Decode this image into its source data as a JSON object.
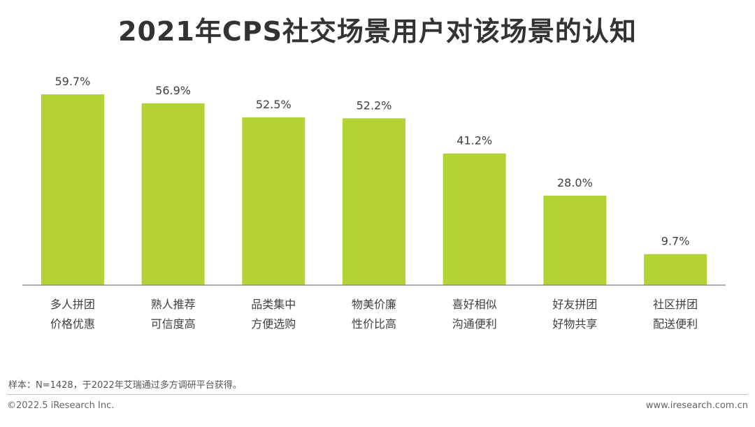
{
  "chart_data": {
    "type": "bar",
    "title": "2021年CPS社交场景用户对该场景的认知",
    "categories": [
      [
        "多人拼团",
        "价格优惠"
      ],
      [
        "熟人推荐",
        "可信度高"
      ],
      [
        "品类集中",
        "方便选购"
      ],
      [
        "物美价廉",
        "性价比高"
      ],
      [
        "喜好相似",
        "沟通便利"
      ],
      [
        "好友拼团",
        "好物共享"
      ],
      [
        "社区拼团",
        "配送便利"
      ]
    ],
    "values": [
      59.7,
      56.9,
      52.5,
      52.2,
      41.2,
      28.0,
      9.7
    ],
    "value_labels": [
      "59.7%",
      "56.9%",
      "52.5%",
      "52.2%",
      "41.2%",
      "28.0%",
      "9.7%"
    ],
    "unit": "%",
    "ylim": [
      0,
      60
    ],
    "grid": false,
    "bar_color": "#b3d334",
    "axis_color": "#7f7f7f"
  },
  "note": "样本：N=1428，于2022年艾瑞通过多方调研平台获得。",
  "footer": {
    "left": "©2022.5 iResearch Inc.",
    "right": "www.iresearch.com.cn"
  }
}
